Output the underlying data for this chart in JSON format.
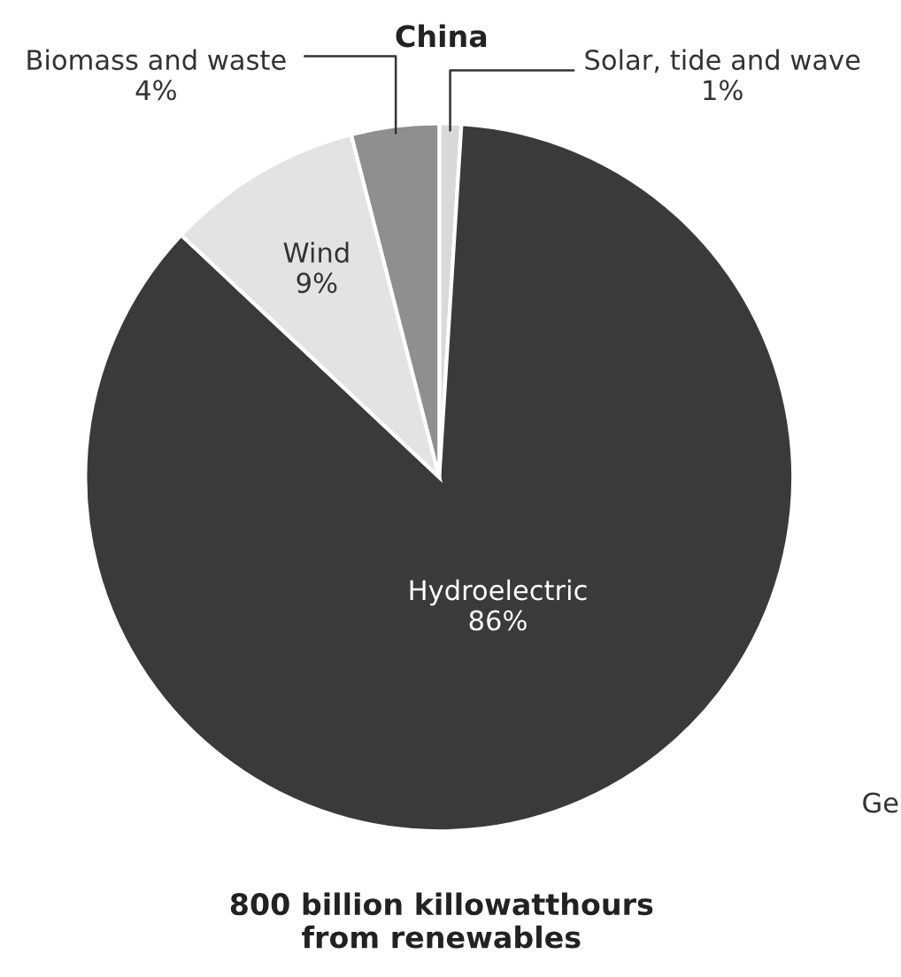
{
  "chart_data": {
    "type": "pie",
    "title": "China",
    "categories": [
      "Solar, tide and wave",
      "Hydroelectric",
      "Wind",
      "Biomass and waste"
    ],
    "values": [
      1,
      86,
      9,
      4
    ],
    "value_labels": [
      "1%",
      "86%",
      "9%",
      "4%"
    ],
    "colors": [
      "#d9d9d9",
      "#3a3a3a",
      "#e3e3e3",
      "#8f8f8f"
    ],
    "annotations": [
      "800 billion killowatthours\nfrom renewables",
      "Ge"
    ]
  }
}
